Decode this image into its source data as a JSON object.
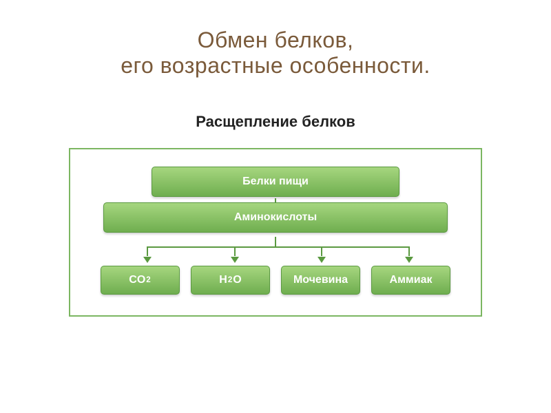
{
  "title": {
    "line1": "Обмен белков,",
    "line2": "его возрастные особенности.",
    "color": "#7a5a3a",
    "fontsize": 32
  },
  "subtitle": {
    "text": "Расщепление белков",
    "color": "#222222",
    "fontsize": 22
  },
  "diagram": {
    "border_color": "#7bb661",
    "background": "#ffffff",
    "node_gradient_top": "#a6d67f",
    "node_gradient_bottom": "#6fae4f",
    "node_border": "#5a9940",
    "arrow_color": "#5a9940",
    "node_fontsize": 16,
    "nodes": {
      "top": "Белки пищи",
      "middle": "Аминокислоты",
      "bottom": [
        {
          "html": "CO<span class='sub'>2</span>"
        },
        {
          "html": "H<span class='sub'>2</span>O"
        },
        {
          "html": "Мочевина"
        },
        {
          "html": "Аммиак"
        }
      ]
    },
    "bottom_positions_pct": [
      16.5,
      39.3,
      62.1,
      84.9
    ]
  }
}
